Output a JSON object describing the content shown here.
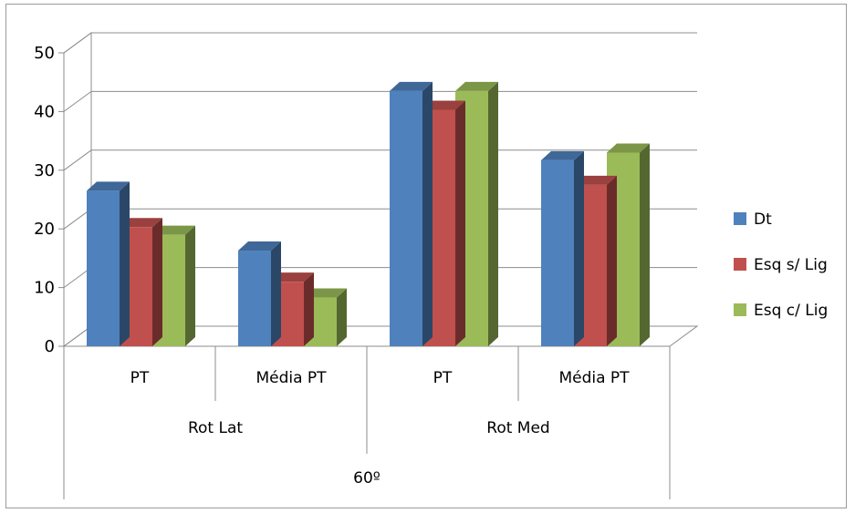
{
  "chart_data": {
    "type": "bar",
    "categories": [
      "PT",
      "Média PT",
      "PT",
      "Média PT"
    ],
    "groups": [
      "Rot Lat",
      "Rot Med"
    ],
    "supergroup": "60º",
    "series": [
      {
        "name": "Dt",
        "values": [
          26.5,
          16.3,
          43.5,
          31.7
        ],
        "color": "#4F81BD"
      },
      {
        "name": "Esq s/ Lig",
        "values": [
          20.3,
          11.0,
          40.3,
          27.5
        ],
        "color": "#C0504D"
      },
      {
        "name": "Esq c/ Lig",
        "values": [
          19.0,
          8.3,
          43.5,
          33.0
        ],
        "color": "#9BBB59"
      }
    ],
    "ylim": [
      0,
      50
    ],
    "yticks": [
      0,
      10,
      20,
      30,
      40,
      50
    ],
    "grid": true,
    "legend_position": "right",
    "title": "",
    "xlabel": "",
    "ylabel": ""
  }
}
